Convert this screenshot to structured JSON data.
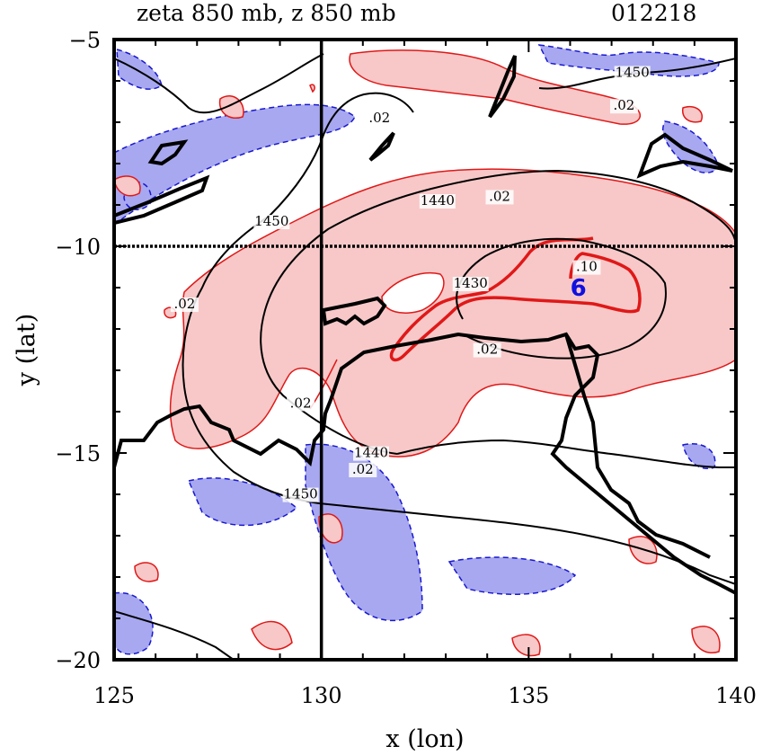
{
  "chart_data": {
    "type": "contour",
    "title": "zeta 850 mb, z 850 mb",
    "date_label": "012218",
    "xlabel": "x (lon)",
    "ylabel": "y (lat)",
    "xlim": [
      125,
      140
    ],
    "ylim": [
      -20,
      -5
    ],
    "x_ticks": [
      "125",
      "130",
      "135",
      "140"
    ],
    "y_ticks": [
      "-5",
      "-10",
      "-15",
      "-20"
    ],
    "reference_lines": {
      "x": 130,
      "y": -10
    },
    "colors": {
      "positive_fill": "#f8c8c8",
      "positive_line": "#e01818",
      "negative_fill": "#a8a8f0",
      "negative_line": "#1818d0",
      "height_line": "#000000"
    },
    "vorticity_labels": [
      {
        "text": ".02",
        "lon": 131.4,
        "lat": -7.0
      },
      {
        "text": ".02",
        "lon": 137.3,
        "lat": -6.7
      },
      {
        "text": ".02",
        "lon": 134.3,
        "lat": -8.9
      },
      {
        "text": ".02",
        "lon": 126.7,
        "lat": -11.5
      },
      {
        "text": ".10",
        "lon": 136.4,
        "lat": -10.6
      },
      {
        "text": ".02",
        "lon": 134.0,
        "lat": -12.6
      },
      {
        "text": ".02",
        "lon": 129.5,
        "lat": -13.9
      },
      {
        "text": ".02",
        "lon": 131.0,
        "lat": -15.5
      }
    ],
    "height_labels": [
      {
        "text": "1450",
        "lon": 137.5,
        "lat": -5.9
      },
      {
        "text": "1440",
        "lon": 132.8,
        "lat": -9.0
      },
      {
        "text": "1450",
        "lon": 128.8,
        "lat": -9.5
      },
      {
        "text": "1430",
        "lon": 133.6,
        "lat": -11.0
      },
      {
        "text": "1440",
        "lon": 131.2,
        "lat": -15.1
      },
      {
        "text": "1450",
        "lon": 129.5,
        "lat": -16.1
      }
    ],
    "center_marker": {
      "symbol": "6",
      "lon": 136.2,
      "lat": -11.0
    }
  }
}
